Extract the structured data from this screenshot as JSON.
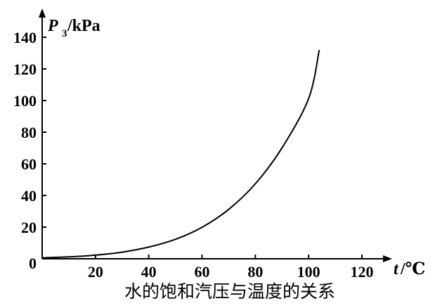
{
  "chart_data": {
    "type": "line",
    "title": "水的饱和汽压与温度的关系",
    "xlabel": {
      "main": "t",
      "unit": "/℃"
    },
    "ylabel": {
      "main": "P",
      "sub": "3",
      "unit": "/kPa"
    },
    "xlim": [
      0,
      120
    ],
    "ylim": [
      0,
      140
    ],
    "xticks": [
      "20",
      "40",
      "60",
      "80",
      "100",
      "120"
    ],
    "yticks": [
      "0",
      "20",
      "40",
      "60",
      "80",
      "100",
      "120",
      "140"
    ],
    "grid": false,
    "series": [
      {
        "x": [
          0,
          10,
          20,
          30,
          40,
          50,
          60,
          70,
          80,
          90,
          100,
          104
        ],
        "y": [
          0.6,
          1.2,
          2.3,
          4.2,
          7.4,
          12.3,
          19.9,
          31.2,
          47.4,
          70.1,
          101.3,
          132
        ]
      }
    ],
    "color": "#000000"
  }
}
